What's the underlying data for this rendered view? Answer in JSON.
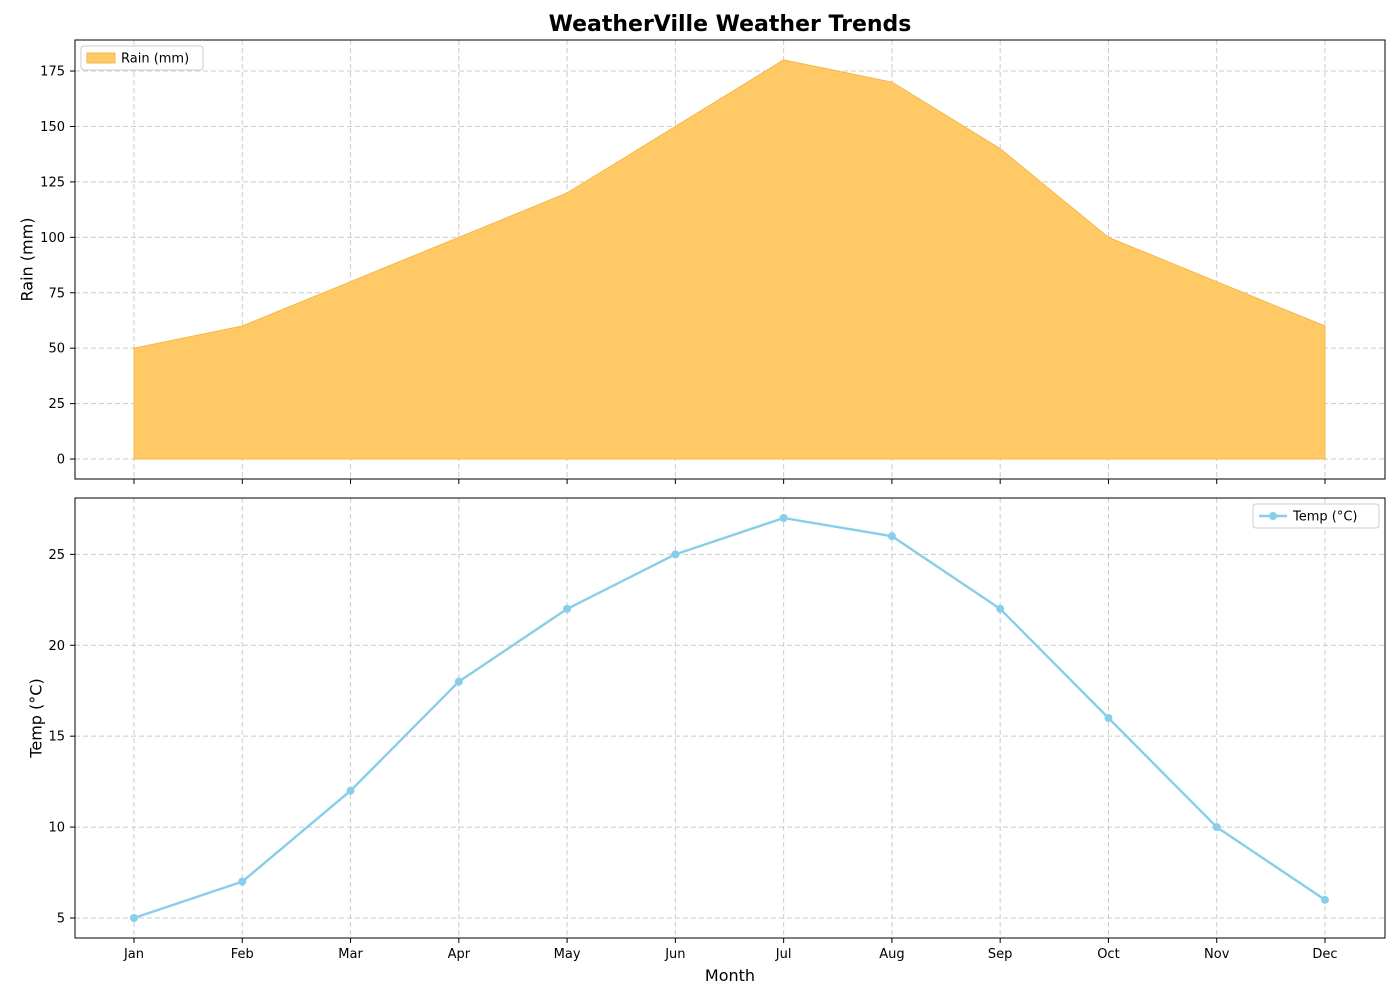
{
  "chart_data": {
    "title": "WeatherVille Weather Trends",
    "xlabel": "Month",
    "categories": [
      "Jan",
      "Feb",
      "Mar",
      "Apr",
      "May",
      "Jun",
      "Jul",
      "Aug",
      "Sep",
      "Oct",
      "Nov",
      "Dec"
    ],
    "grid": true,
    "panels": [
      {
        "type": "area",
        "ylabel": "Rain (mm)",
        "ylim": [
          -9,
          189
        ],
        "yticks": [
          0,
          25,
          50,
          75,
          100,
          125,
          150,
          175
        ],
        "legend_location": "upper-left",
        "series": [
          {
            "name": "Rain (mm)",
            "color": "#ffc966",
            "edge_color": "#f5b84a",
            "values": [
              50,
              60,
              80,
              100,
              120,
              150,
              180,
              170,
              140,
              100,
              80,
              60
            ]
          }
        ]
      },
      {
        "type": "line",
        "ylabel": "Temp (°C)",
        "ylim": [
          3.9,
          28.1
        ],
        "yticks": [
          5,
          10,
          15,
          20,
          25
        ],
        "legend_location": "upper-right",
        "series": [
          {
            "name": "Temp (°C)",
            "color": "#87ceeb",
            "marker": "circle",
            "values": [
              5,
              7,
              12,
              18,
              22,
              25,
              27,
              26,
              22,
              16,
              10,
              6
            ]
          }
        ]
      }
    ]
  }
}
